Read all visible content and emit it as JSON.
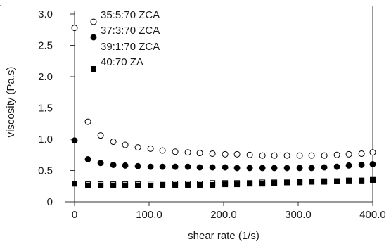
{
  "chart_data": {
    "type": "scatter",
    "xlabel": "shear rate (1/s)",
    "ylabel": "viscosity (Pa.s)",
    "xlim": [
      0,
      400
    ],
    "ylim": [
      0,
      3.0
    ],
    "x_ticks": [
      "0",
      "100.0",
      "200.0",
      "300.0",
      "400.0"
    ],
    "y_ticks": [
      "0",
      "0.5",
      "1.0",
      "1.5",
      "2.0",
      "2.5",
      "3.0"
    ],
    "grid": false,
    "legend_position": "top-left",
    "series": [
      {
        "name": "35:5:70 ZCA",
        "marker": "open-circle",
        "color": "#000000",
        "x": [
          0,
          18,
          35,
          52,
          68,
          85,
          102,
          118,
          135,
          152,
          168,
          185,
          202,
          218,
          235,
          252,
          268,
          285,
          302,
          318,
          335,
          352,
          368,
          385,
          400
        ],
        "y": [
          2.78,
          1.28,
          1.06,
          0.96,
          0.91,
          0.87,
          0.85,
          0.82,
          0.8,
          0.79,
          0.78,
          0.77,
          0.76,
          0.76,
          0.75,
          0.74,
          0.74,
          0.74,
          0.74,
          0.74,
          0.74,
          0.75,
          0.76,
          0.77,
          0.79
        ]
      },
      {
        "name": "37:3:70 ZCA",
        "marker": "filled-circle",
        "color": "#000000",
        "x": [
          0,
          18,
          35,
          52,
          68,
          85,
          102,
          118,
          135,
          152,
          168,
          185,
          202,
          218,
          235,
          252,
          268,
          285,
          302,
          318,
          335,
          352,
          368,
          385,
          400
        ],
        "y": [
          0.98,
          0.68,
          0.62,
          0.59,
          0.58,
          0.57,
          0.56,
          0.56,
          0.56,
          0.56,
          0.55,
          0.55,
          0.55,
          0.54,
          0.54,
          0.54,
          0.54,
          0.54,
          0.54,
          0.54,
          0.55,
          0.56,
          0.58,
          0.59,
          0.6
        ]
      },
      {
        "name": "39:1:70 ZCA",
        "marker": "open-square",
        "color": "#000000",
        "x": [
          0,
          18,
          35,
          52,
          68,
          85,
          102,
          118,
          135,
          152,
          168,
          185,
          202,
          218,
          235,
          252,
          268,
          285,
          302,
          318,
          335,
          352,
          368,
          385,
          400
        ],
        "y": [
          0.29,
          0.28,
          0.28,
          0.28,
          0.28,
          0.28,
          0.29,
          0.29,
          0.29,
          0.29,
          0.29,
          0.3,
          0.3,
          0.3,
          0.3,
          0.31,
          0.31,
          0.31,
          0.32,
          0.32,
          0.33,
          0.33,
          0.34,
          0.34,
          0.35
        ]
      },
      {
        "name": "40:70 ZA",
        "marker": "filled-square",
        "color": "#000000",
        "x": [
          0,
          18,
          35,
          52,
          68,
          85,
          102,
          118,
          135,
          152,
          168,
          185,
          202,
          218,
          235,
          252,
          268,
          285,
          302,
          318,
          335,
          352,
          368,
          385,
          400
        ],
        "y": [
          0.29,
          0.26,
          0.26,
          0.26,
          0.26,
          0.26,
          0.26,
          0.27,
          0.27,
          0.27,
          0.27,
          0.27,
          0.28,
          0.28,
          0.29,
          0.29,
          0.3,
          0.31,
          0.31,
          0.32,
          0.32,
          0.33,
          0.34,
          0.34,
          0.35
        ]
      }
    ]
  }
}
